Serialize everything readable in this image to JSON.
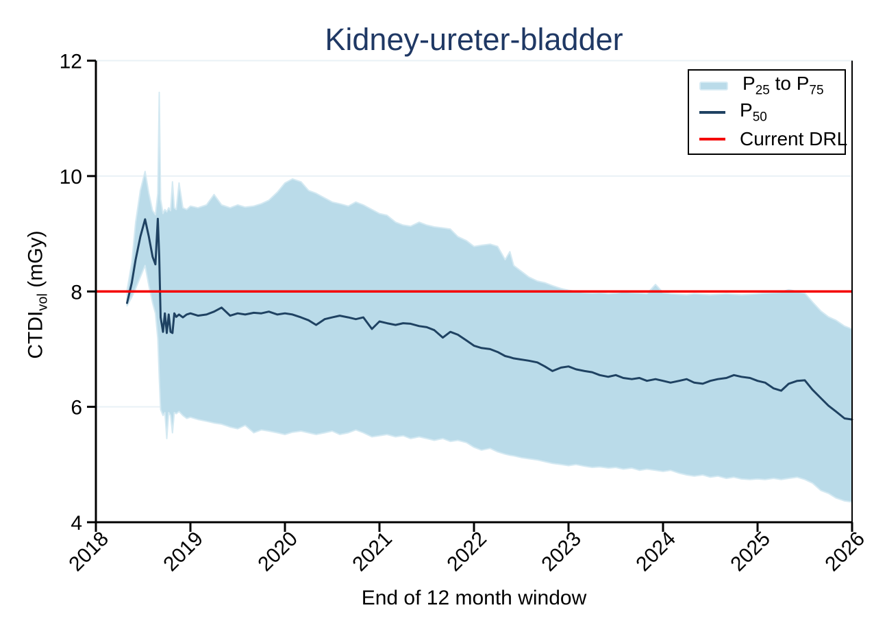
{
  "title": {
    "text": "Kidney-ureter-bladder",
    "color": "#1f3864"
  },
  "axes": {
    "x": {
      "label": "End of 12 month window",
      "ticks": [
        2018,
        2019,
        2020,
        2021,
        2022,
        2023,
        2024,
        2025,
        2026
      ],
      "range": [
        2018,
        2026
      ]
    },
    "y": {
      "label_parts": {
        "main": "CTDI",
        "sub": "vol",
        "rest": " (mGy)"
      },
      "label": "CTDIvol (mGy)",
      "ticks": [
        4,
        6,
        8,
        10,
        12
      ],
      "range": [
        4,
        12
      ],
      "gridlines": [
        6,
        8,
        10,
        12
      ]
    }
  },
  "legend": {
    "position": "upper right",
    "items": [
      {
        "type": "band",
        "color": "#badbe9",
        "parts": [
          {
            "t": "P"
          },
          {
            "t": "25"
          },
          {
            "t": " to P"
          },
          {
            "t": "75"
          }
        ]
      },
      {
        "type": "line",
        "color": "#1f4262",
        "parts": [
          {
            "t": "P"
          },
          {
            "t": "50"
          }
        ]
      },
      {
        "type": "line",
        "color": "#f40000",
        "parts": [
          {
            "t": "Current DRL"
          }
        ]
      }
    ]
  },
  "chart_data": {
    "type": "area",
    "title": "Kidney-ureter-bladder",
    "xlabel": "End of 12 month window",
    "ylabel": "CTDIvol (mGy)",
    "xlim": [
      2018,
      2026
    ],
    "ylim": [
      4,
      12
    ],
    "x_ticks": [
      2018,
      2019,
      2020,
      2021,
      2022,
      2023,
      2024,
      2025,
      2026
    ],
    "y_ticks": [
      4,
      6,
      8,
      10,
      12
    ],
    "gridlines": [
      6,
      8,
      10,
      12
    ],
    "grid": true,
    "legend_entries": [
      "P25 to P75",
      "P50",
      "Current DRL"
    ],
    "drl": 8.0,
    "colors": {
      "band": "#badbe9",
      "band_edge": "#d4e9f2",
      "median": "#1f4262",
      "drl": "#f40000",
      "grid": "#e9f1f6",
      "axis": "#000000"
    },
    "x": [
      2018.33,
      2018.38,
      2018.42,
      2018.47,
      2018.52,
      2018.56,
      2018.6,
      2018.63,
      2018.655,
      2018.67,
      2018.685,
      2018.71,
      2018.73,
      2018.75,
      2018.77,
      2018.79,
      2018.81,
      2018.83,
      2018.85,
      2018.88,
      2018.92,
      2018.96,
      2019.0,
      2019.08,
      2019.17,
      2019.25,
      2019.33,
      2019.42,
      2019.5,
      2019.58,
      2019.67,
      2019.75,
      2019.83,
      2019.92,
      2020.0,
      2020.08,
      2020.17,
      2020.25,
      2020.33,
      2020.42,
      2020.5,
      2020.58,
      2020.67,
      2020.75,
      2020.83,
      2020.92,
      2021.0,
      2021.08,
      2021.17,
      2021.25,
      2021.33,
      2021.42,
      2021.5,
      2021.58,
      2021.67,
      2021.75,
      2021.83,
      2021.92,
      2022.0,
      2022.08,
      2022.17,
      2022.25,
      2022.33,
      2022.38,
      2022.42,
      2022.5,
      2022.58,
      2022.67,
      2022.75,
      2022.83,
      2022.92,
      2023.0,
      2023.08,
      2023.17,
      2023.25,
      2023.33,
      2023.42,
      2023.5,
      2023.58,
      2023.67,
      2023.75,
      2023.83,
      2023.92,
      2024.0,
      2024.08,
      2024.17,
      2024.25,
      2024.33,
      2024.42,
      2024.5,
      2024.58,
      2024.67,
      2024.75,
      2024.83,
      2024.92,
      2025.0,
      2025.08,
      2025.17,
      2025.25,
      2025.33,
      2025.42,
      2025.5,
      2025.58,
      2025.67,
      2025.75,
      2025.83,
      2025.92,
      2026.0
    ],
    "p25": [
      7.75,
      7.9,
      8.05,
      8.25,
      8.45,
      8.1,
      7.8,
      7.62,
      7.18,
      6.5,
      5.95,
      5.85,
      5.9,
      5.45,
      5.9,
      5.85,
      5.55,
      5.9,
      5.88,
      5.92,
      5.85,
      5.8,
      5.82,
      5.78,
      5.75,
      5.72,
      5.7,
      5.65,
      5.62,
      5.68,
      5.55,
      5.6,
      5.58,
      5.55,
      5.52,
      5.56,
      5.58,
      5.55,
      5.52,
      5.55,
      5.58,
      5.52,
      5.55,
      5.6,
      5.55,
      5.48,
      5.5,
      5.52,
      5.48,
      5.5,
      5.45,
      5.48,
      5.45,
      5.42,
      5.45,
      5.4,
      5.42,
      5.38,
      5.3,
      5.25,
      5.28,
      5.22,
      5.18,
      5.16,
      5.15,
      5.12,
      5.1,
      5.08,
      5.05,
      5.02,
      5.0,
      4.98,
      5.0,
      4.97,
      4.95,
      4.96,
      4.94,
      4.95,
      4.92,
      4.94,
      4.9,
      4.92,
      4.9,
      4.88,
      4.9,
      4.85,
      4.82,
      4.8,
      4.82,
      4.78,
      4.8,
      4.76,
      4.78,
      4.75,
      4.74,
      4.75,
      4.74,
      4.76,
      4.74,
      4.76,
      4.78,
      4.74,
      4.68,
      4.55,
      4.5,
      4.42,
      4.37,
      4.35
    ],
    "p50": [
      7.8,
      8.15,
      8.55,
      8.95,
      9.25,
      8.95,
      8.6,
      8.47,
      9.26,
      8.6,
      7.55,
      7.3,
      7.62,
      7.28,
      7.6,
      7.3,
      7.28,
      7.62,
      7.56,
      7.6,
      7.55,
      7.6,
      7.62,
      7.58,
      7.6,
      7.65,
      7.72,
      7.58,
      7.62,
      7.6,
      7.63,
      7.62,
      7.65,
      7.6,
      7.62,
      7.6,
      7.55,
      7.5,
      7.42,
      7.52,
      7.55,
      7.58,
      7.55,
      7.52,
      7.55,
      7.35,
      7.48,
      7.45,
      7.42,
      7.45,
      7.44,
      7.4,
      7.38,
      7.33,
      7.2,
      7.3,
      7.25,
      7.15,
      7.06,
      7.02,
      7.0,
      6.95,
      6.88,
      6.86,
      6.84,
      6.82,
      6.8,
      6.77,
      6.7,
      6.62,
      6.68,
      6.7,
      6.65,
      6.62,
      6.6,
      6.55,
      6.52,
      6.55,
      6.5,
      6.48,
      6.5,
      6.45,
      6.48,
      6.45,
      6.42,
      6.45,
      6.48,
      6.42,
      6.4,
      6.45,
      6.48,
      6.5,
      6.55,
      6.52,
      6.5,
      6.45,
      6.42,
      6.32,
      6.28,
      6.4,
      6.45,
      6.46,
      6.3,
      6.15,
      6.02,
      5.92,
      5.8,
      5.78
    ],
    "p75": [
      8.02,
      8.5,
      9.2,
      9.75,
      10.08,
      9.7,
      9.4,
      9.33,
      9.7,
      11.45,
      9.6,
      9.35,
      9.42,
      9.38,
      9.45,
      9.4,
      9.9,
      9.45,
      9.42,
      9.88,
      9.45,
      9.42,
      9.48,
      9.45,
      9.5,
      9.68,
      9.5,
      9.45,
      9.5,
      9.46,
      9.48,
      9.52,
      9.58,
      9.72,
      9.88,
      9.95,
      9.9,
      9.75,
      9.7,
      9.62,
      9.55,
      9.52,
      9.48,
      9.55,
      9.5,
      9.42,
      9.35,
      9.32,
      9.2,
      9.15,
      9.13,
      9.2,
      9.15,
      9.12,
      9.1,
      9.08,
      8.95,
      8.88,
      8.78,
      8.8,
      8.82,
      8.78,
      8.55,
      8.69,
      8.45,
      8.35,
      8.25,
      8.18,
      8.15,
      8.1,
      8.05,
      8.02,
      8.0,
      7.98,
      7.97,
      7.98,
      7.96,
      7.97,
      8.0,
      7.98,
      7.97,
      7.96,
      8.12,
      7.98,
      7.96,
      7.95,
      7.94,
      7.96,
      7.95,
      7.94,
      7.95,
      7.96,
      7.95,
      7.94,
      7.95,
      7.96,
      7.97,
      7.98,
      7.99,
      8.03,
      8.0,
      7.97,
      7.82,
      7.66,
      7.56,
      7.5,
      7.4,
      7.35
    ]
  }
}
